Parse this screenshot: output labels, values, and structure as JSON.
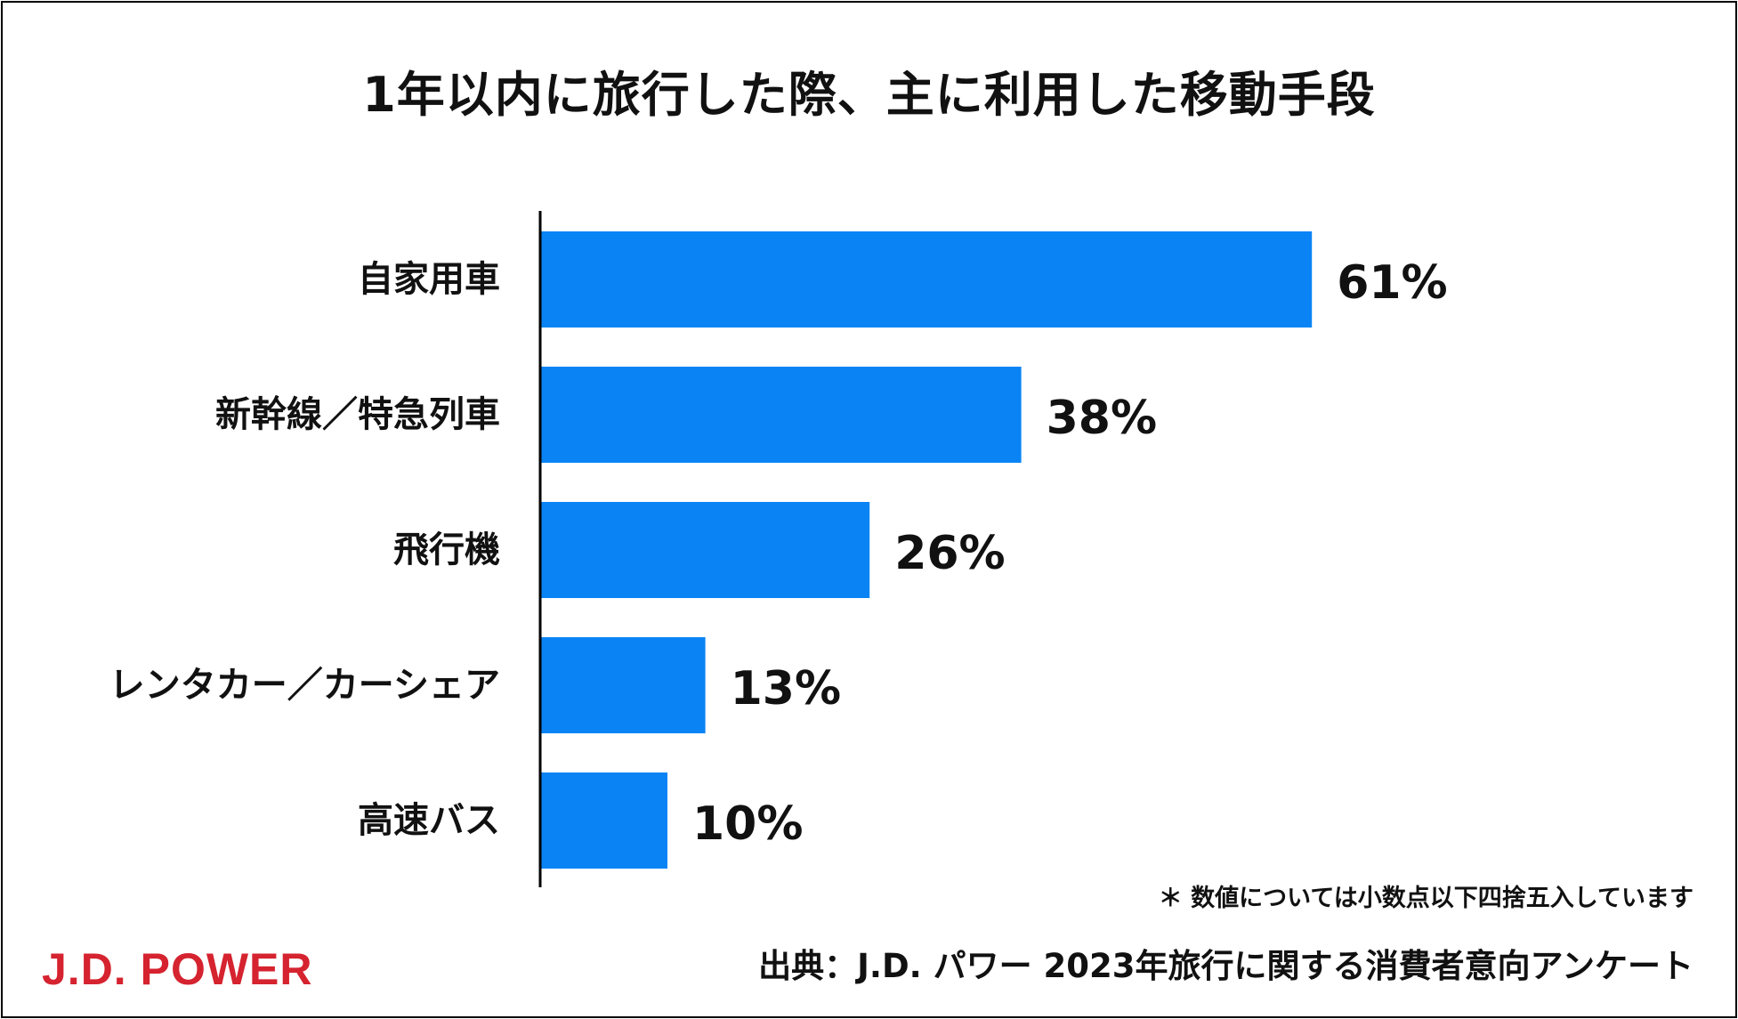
{
  "chart_data": {
    "type": "bar",
    "orientation": "horizontal",
    "title": "1年以内に旅行した際、主に利用した移動手段",
    "categories": [
      "自家用車",
      "新幹線／特急列車",
      "飛行機",
      "レンタカー／カーシェア",
      "高速バス"
    ],
    "values": [
      61,
      38,
      26,
      13,
      10
    ],
    "value_labels": [
      "61%",
      "38%",
      "26%",
      "13%",
      "10%"
    ],
    "unit": "%",
    "xlim": [
      0,
      100
    ],
    "grid": false,
    "bar_color": "#0a84f5"
  },
  "footnote": "＊ 数値については小数点以下四捨五入しています",
  "source": "出典：J.D. パワー 2023年旅行に関する消費者意向アンケート",
  "logo_text": "J.D. POWER",
  "colors": {
    "logo": "#d5232f",
    "text": "#111111",
    "axis": "#000000"
  }
}
